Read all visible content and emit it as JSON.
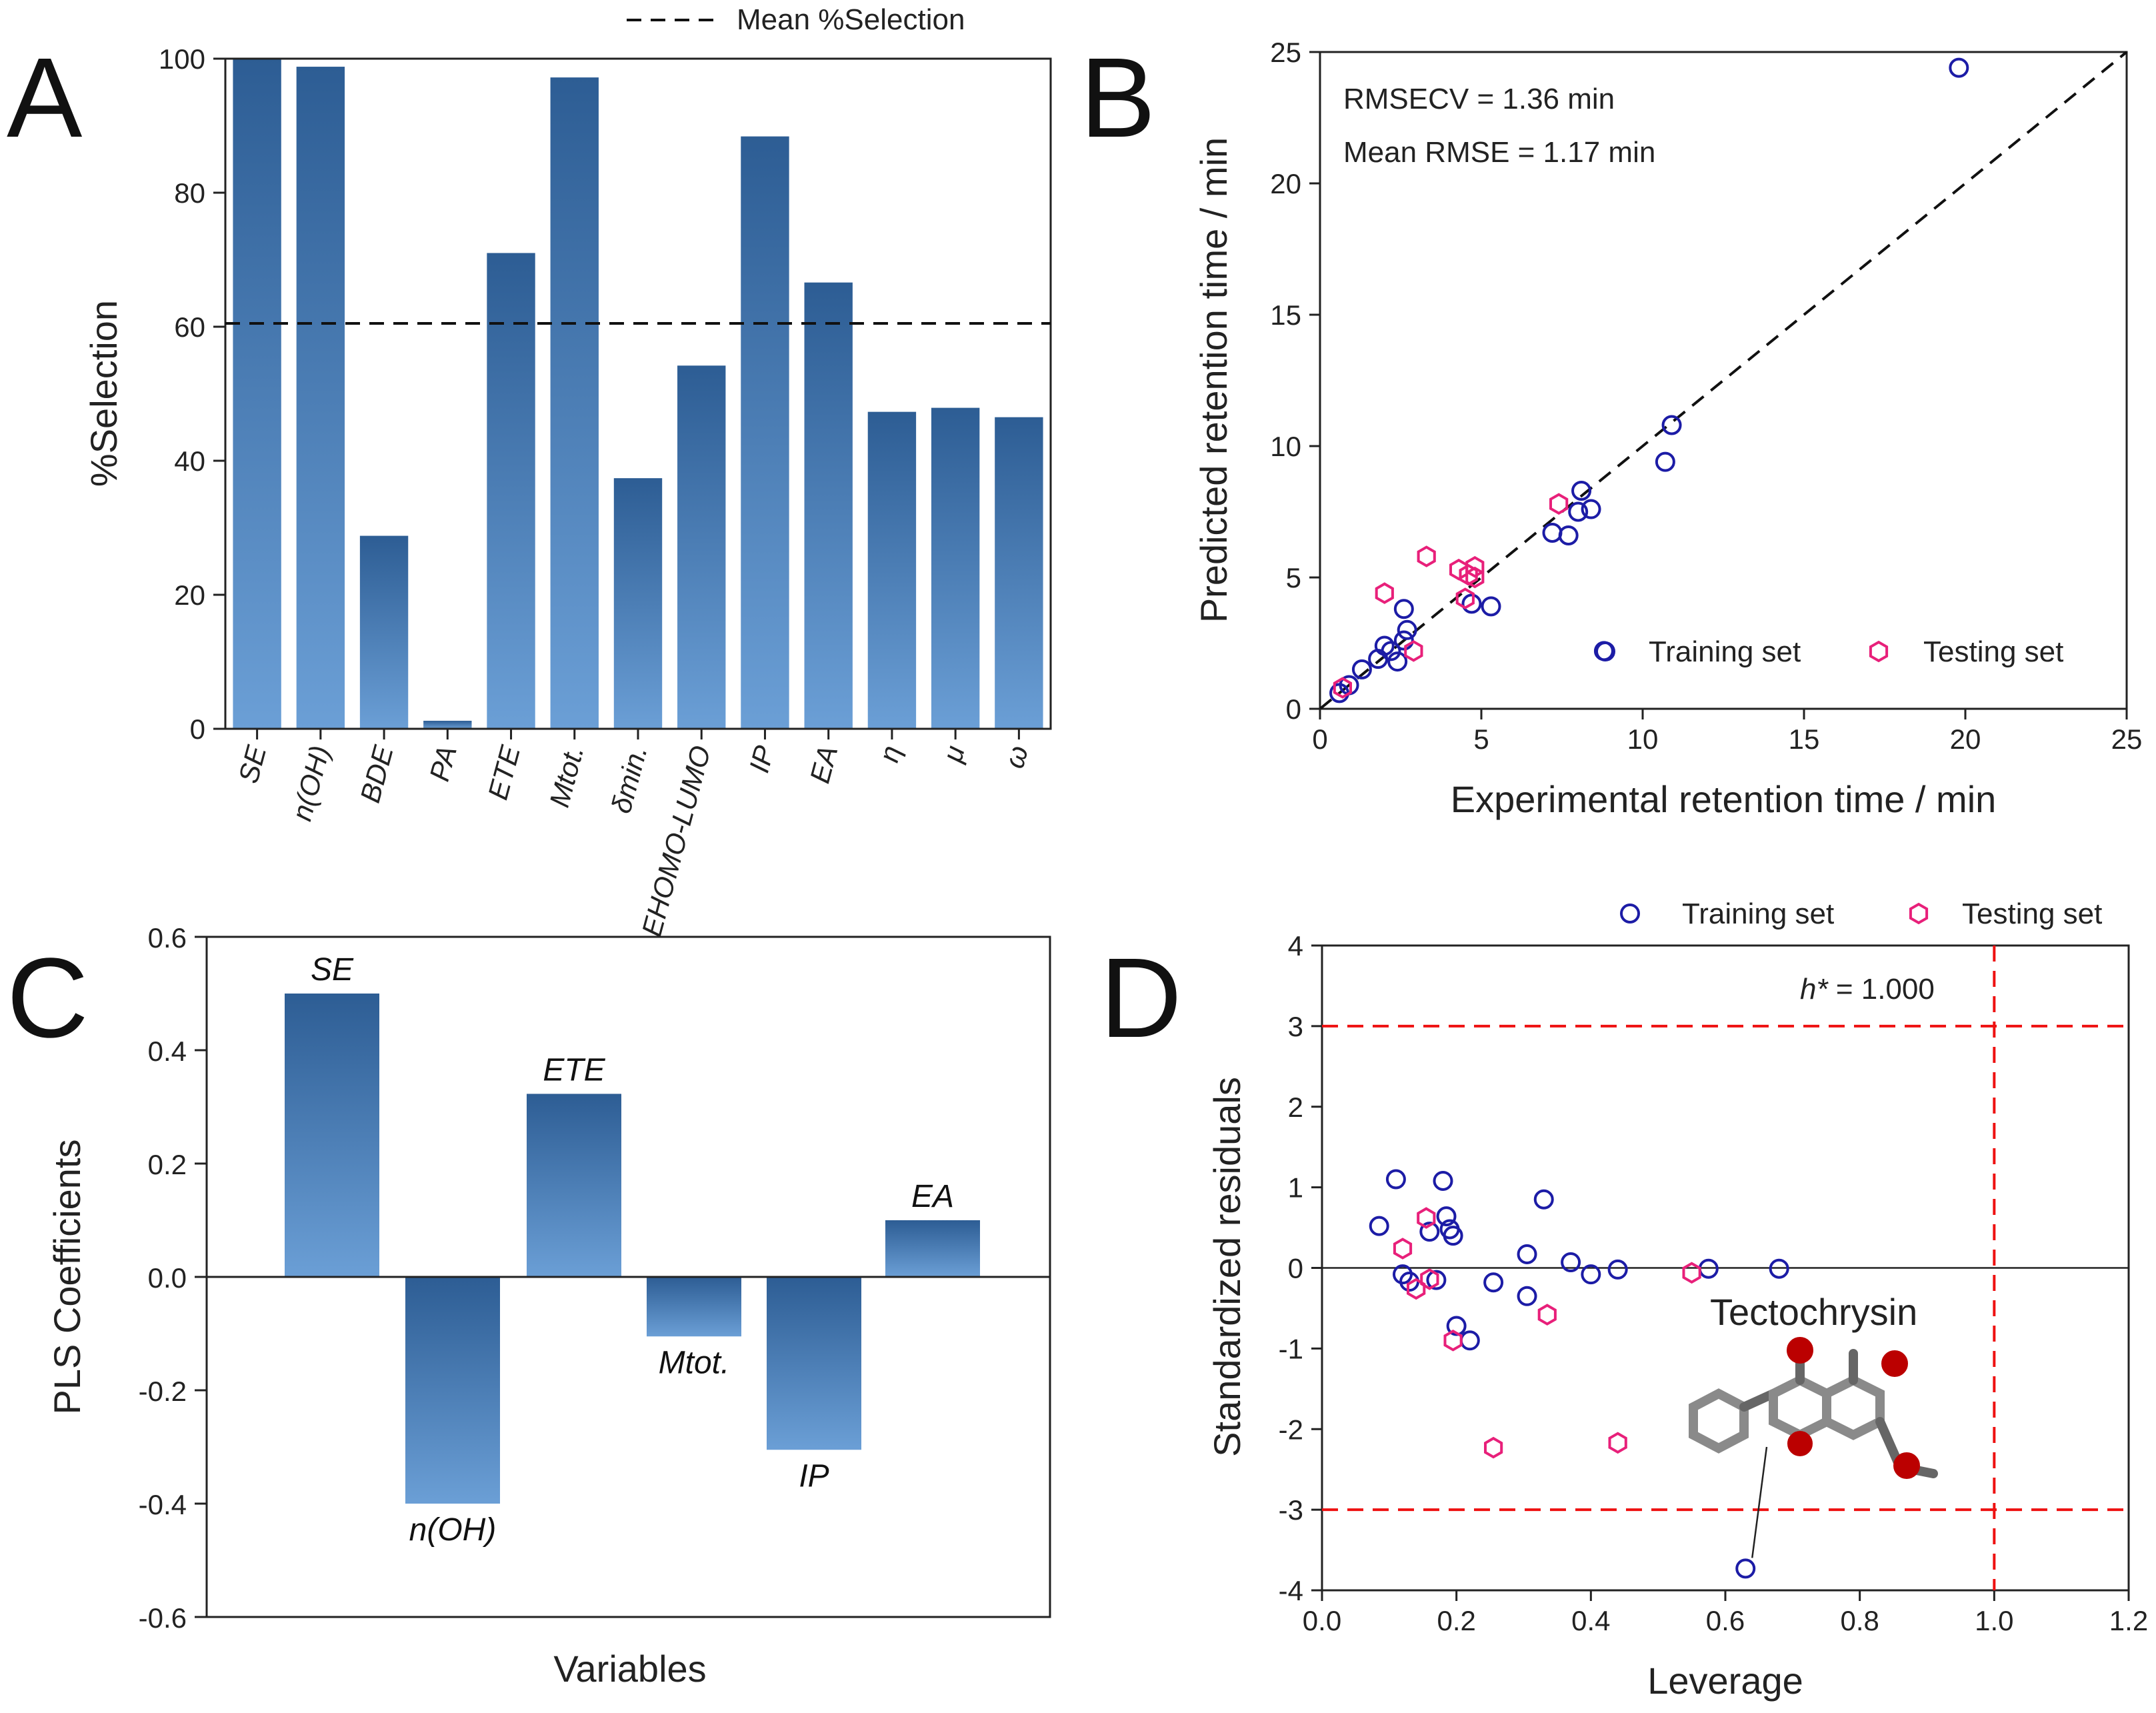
{
  "chart_data": [
    {
      "panel": "A",
      "type": "bar",
      "ylabel": "%Selection",
      "ylim": [
        0,
        100
      ],
      "yticks": [
        0,
        20,
        40,
        60,
        80,
        100
      ],
      "categories": [
        "SE",
        "n(OH)",
        "BDE",
        "PA",
        "ETE",
        "Mtot.",
        "δmin.",
        "EHOMO-LUMO",
        "IP",
        "EA",
        "η",
        "μ",
        "ω"
      ],
      "values": [
        100,
        98.8,
        28.8,
        1.2,
        71,
        97.2,
        37.4,
        54.2,
        88.4,
        66.6,
        47.3,
        47.9,
        46.5
      ],
      "mean_line": 60.5,
      "legend": "Mean %Selection",
      "colors": {
        "bar_top": "#2d5d94",
        "bar_bottom": "#6b9fd6"
      }
    },
    {
      "panel": "B",
      "type": "scatter",
      "xlabel": "Experimental retention time / min",
      "ylabel": "Predicted retention time / min",
      "xlim": [
        0,
        25
      ],
      "ylim": [
        0,
        25
      ],
      "xticks": [
        0,
        5,
        10,
        15,
        20,
        25
      ],
      "yticks": [
        0,
        5,
        10,
        15,
        20,
        25
      ],
      "annotations": [
        "RMSECV = 1.36 min",
        "Mean RMSE = 1.17 min"
      ],
      "series": [
        {
          "name": "Training set",
          "color": "#1c1ca6",
          "marker": "circle",
          "x": [
            0.6,
            0.9,
            1.3,
            1.8,
            2.0,
            2.2,
            2.4,
            2.6,
            2.6,
            2.7,
            4.7,
            5.3,
            7.2,
            7.7,
            8.0,
            8.1,
            8.4,
            10.7,
            10.9,
            8.8,
            19.8
          ],
          "y": [
            0.6,
            0.9,
            1.5,
            1.9,
            2.4,
            2.2,
            1.8,
            3.8,
            2.6,
            3.0,
            4.0,
            3.9,
            6.7,
            6.6,
            7.5,
            8.3,
            7.6,
            9.4,
            10.8,
            2.2,
            24.4
          ]
        },
        {
          "name": "Testing set",
          "color": "#e8207a",
          "marker": "hexagon",
          "x": [
            0.7,
            2.0,
            2.9,
            3.3,
            4.3,
            4.5,
            4.6,
            4.8,
            4.8,
            7.4
          ],
          "y": [
            0.8,
            4.4,
            2.2,
            5.8,
            5.3,
            4.2,
            5.1,
            5.4,
            5.0,
            7.8
          ]
        }
      ]
    },
    {
      "panel": "C",
      "type": "bar",
      "xlabel": "Variables",
      "ylabel": "PLS Coefficients",
      "ylim": [
        -0.6,
        0.6
      ],
      "yticks": [
        -0.6,
        -0.4,
        -0.2,
        0.0,
        0.2,
        0.4,
        0.6
      ],
      "ytick_labels": [
        "-0.6",
        "-0.4",
        "-0.2",
        "0.0",
        "0.2",
        "0.4",
        "0.6"
      ],
      "categories": [
        "SE",
        "n(OH)",
        "ETE",
        "Mtot.",
        "IP",
        "EA"
      ],
      "values": [
        0.5,
        -0.4,
        0.323,
        -0.105,
        -0.305,
        0.1
      ]
    },
    {
      "panel": "D",
      "type": "scatter",
      "xlabel": "Leverage",
      "ylabel": "Standardized residuals",
      "xlim": [
        0.0,
        1.2
      ],
      "ylim": [
        -4,
        4
      ],
      "xticks": [
        0.0,
        0.2,
        0.4,
        0.6,
        0.8,
        1.0,
        1.2
      ],
      "xtick_labels": [
        "0.0",
        "0.2",
        "0.4",
        "0.6",
        "0.8",
        "1.0",
        "1.2"
      ],
      "yticks": [
        -4,
        -3,
        -2,
        -1,
        0,
        1,
        2,
        3,
        4
      ],
      "thresholds": {
        "h_star": 1.0,
        "residual": 3
      },
      "h_star_label": "= 1.000",
      "outlier_label": "Tectochrysin",
      "outlier": {
        "x": 0.63,
        "y": -3.73
      },
      "series": [
        {
          "name": "Training set",
          "color": "#1c1ca6",
          "marker": "circle",
          "x": [
            0.085,
            0.11,
            0.12,
            0.13,
            0.16,
            0.17,
            0.18,
            0.185,
            0.19,
            0.195,
            0.2,
            0.22,
            0.255,
            0.305,
            0.305,
            0.33,
            0.37,
            0.4,
            0.44,
            0.575,
            0.68,
            0.63
          ],
          "y": [
            0.52,
            1.1,
            -0.08,
            -0.17,
            0.45,
            -0.15,
            1.08,
            0.64,
            0.48,
            0.4,
            -0.72,
            -0.9,
            -0.18,
            -0.35,
            0.17,
            0.85,
            0.07,
            -0.08,
            -0.02,
            -0.01,
            -0.01,
            -3.73
          ]
        },
        {
          "name": "Testing set",
          "color": "#e8207a",
          "marker": "hexagon",
          "x": [
            0.12,
            0.14,
            0.155,
            0.16,
            0.195,
            0.255,
            0.335,
            0.44,
            0.55
          ],
          "y": [
            0.24,
            -0.26,
            0.62,
            -0.14,
            -0.9,
            -2.23,
            -0.58,
            -2.17,
            -0.06
          ]
        }
      ]
    }
  ],
  "labels": {
    "panel_a": "A",
    "panel_b": "B",
    "panel_c": "C",
    "panel_d": "D",
    "a_ylabel": "%Selection",
    "a_legend": "Mean %Selection",
    "b_xlabel": "Experimental retention time / min",
    "b_ylabel": "Predicted retention time / min",
    "b_ann1": "RMSECV = 1.36 min",
    "b_ann2": "Mean RMSE = 1.17 min",
    "b_legend_train": "Training set",
    "b_legend_test": "Testing set",
    "c_xlabel": "Variables",
    "c_ylabel": "PLS Coefficients",
    "d_xlabel": "Leverage",
    "d_ylabel": "Standardized residuals",
    "d_legend_train": "Training set",
    "d_legend_test": "Testing set",
    "d_hstar": "h*",
    "d_hstar_val": " = 1.000",
    "d_outlier": "Tectochrysin"
  }
}
